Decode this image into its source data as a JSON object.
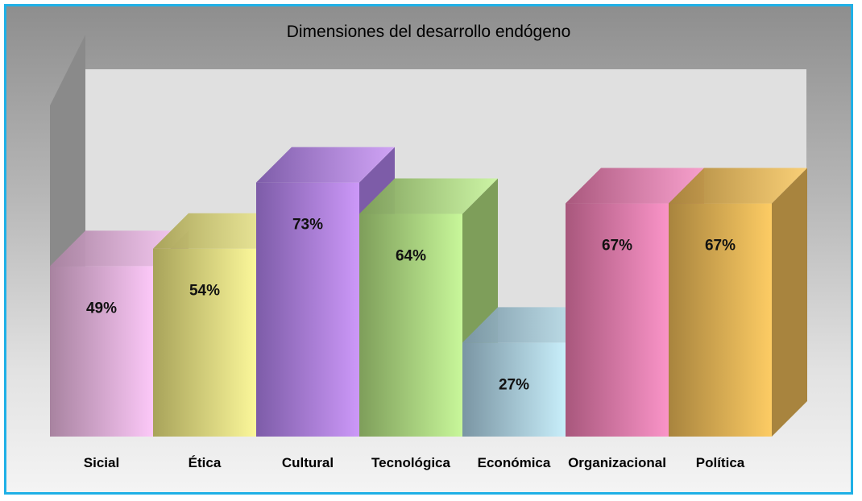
{
  "chart_data": {
    "type": "bar",
    "title": "Dimensiones del desarrollo endógeno",
    "categories": [
      "Sicial",
      "Ética",
      "Cultural",
      "Tecnológica",
      "Económica",
      "Organizacional",
      "Política"
    ],
    "values": [
      49,
      54,
      73,
      64,
      27,
      67,
      67
    ],
    "value_labels": [
      "49%",
      "54%",
      "73%",
      "64%",
      "27%",
      "67%",
      "67%"
    ],
    "ylim": [
      0,
      100
    ],
    "grid": false,
    "legend": "none",
    "three_d": true,
    "colors": [
      {
        "light": "#fcc8f8",
        "dark": "#a883a0"
      },
      {
        "light": "#fbf79a",
        "dark": "#a8a35a"
      },
      {
        "light": "#cc98f8",
        "dark": "#7d5ca8"
      },
      {
        "light": "#c8f79a",
        "dark": "#7e9e5a"
      },
      {
        "light": "#c8eefa",
        "dark": "#7a95a3"
      },
      {
        "light": "#fa94c8",
        "dark": "#a8577c"
      },
      {
        "light": "#fdcc64",
        "dark": "#a8843e"
      }
    ],
    "frame_color": "#1fb0e6"
  }
}
